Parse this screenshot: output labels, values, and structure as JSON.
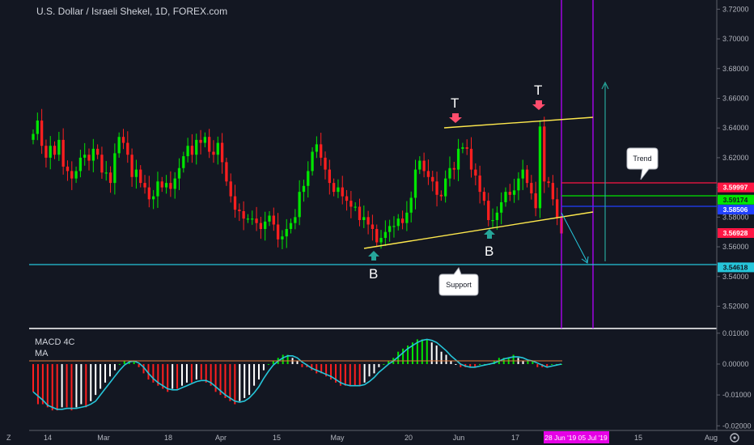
{
  "header": {
    "title": "U.S. Dollar / Israeli Shekel, 1D, FOREX.com"
  },
  "indicator": {
    "name": "MACD 4C",
    "sub": "MA"
  },
  "annotations": {
    "top_left": "T",
    "top_right": "T",
    "bottom_left": "B",
    "bottom_right": "B",
    "trend_label": "Trend",
    "support_label": "Support"
  },
  "price_tags": [
    {
      "value": "3.59997",
      "color": "#ff1744",
      "text_color": "#ffffff"
    },
    {
      "value": "3.59174",
      "color": "#00e600",
      "text_color": "#131722"
    },
    {
      "value": "3.58506",
      "color": "#2040ff",
      "text_color": "#ffffff"
    },
    {
      "value": "3.56928",
      "color": "#ff1744",
      "text_color": "#ffffff"
    },
    {
      "value": "3.54618",
      "color": "#26c6da",
      "text_color": "#131722"
    }
  ],
  "x_axis": {
    "labels": [
      "14",
      "Mar",
      "18",
      "Apr",
      "15",
      "May",
      "20",
      "Jun",
      "17",
      "15",
      "Aug"
    ],
    "range_tag": "28 Jun '19  05 Jul '19",
    "corner": "Z",
    "gear": "settings-gear"
  },
  "colors": {
    "up": "#00e600",
    "down": "#ff1f1f",
    "wedge": "#ffe94d",
    "support": "#26c6da",
    "vline": "#b400ff",
    "macd_line": "#26c6da",
    "hist_white": "#ffffff",
    "hist_red": "#ff1f1f",
    "hist_green": "#00e600"
  },
  "chart_data": [
    {
      "type": "candlestick",
      "title": "U.S. Dollar / Israeli Shekel, 1D, FOREX.com",
      "ylim": [
        3.505,
        3.724
      ],
      "y_ticks": [
        "3.72000",
        "3.70000",
        "3.68000",
        "3.66000",
        "3.64000",
        "3.62000",
        "3.60000",
        "3.58000",
        "3.56000",
        "3.54000",
        "3.52000"
      ],
      "grid": false,
      "close": [
        3.636,
        3.645,
        3.628,
        3.62,
        3.628,
        3.622,
        3.632,
        3.614,
        3.611,
        3.606,
        3.611,
        3.62,
        3.622,
        3.618,
        3.626,
        3.622,
        3.61,
        3.61,
        3.603,
        3.623,
        3.634,
        3.63,
        3.622,
        3.607,
        3.612,
        3.603,
        3.6,
        3.592,
        3.594,
        3.604,
        3.6,
        3.603,
        3.599,
        3.606,
        3.613,
        3.621,
        3.628,
        3.622,
        3.632,
        3.63,
        3.634,
        3.624,
        3.622,
        3.63,
        3.617,
        3.604,
        3.594,
        3.585,
        3.584,
        3.579,
        3.579,
        3.579,
        3.576,
        3.572,
        3.577,
        3.581,
        3.575,
        3.565,
        3.567,
        3.572,
        3.576,
        3.58,
        3.597,
        3.601,
        3.611,
        3.624,
        3.629,
        3.62,
        3.612,
        3.603,
        3.597,
        3.6,
        3.594,
        3.591,
        3.587,
        3.587,
        3.578,
        3.58,
        3.575,
        3.572,
        3.563,
        3.566,
        3.57,
        3.574,
        3.574,
        3.579,
        3.576,
        3.583,
        3.593,
        3.612,
        3.618,
        3.611,
        3.607,
        3.604,
        3.595,
        3.594,
        3.606,
        3.613,
        3.612,
        3.626,
        3.627,
        3.626,
        3.612,
        3.608,
        3.597,
        3.591,
        3.578,
        3.578,
        3.583,
        3.59,
        3.597,
        3.595,
        3.598,
        3.606,
        3.612,
        3.603,
        3.596,
        3.586,
        3.641,
        3.604,
        3.603,
        3.592,
        3.58,
        3.569
      ],
      "trend_target": [
        3.611,
        3.668
      ],
      "support_level": 3.54618
    },
    {
      "type": "bar",
      "title": "MACD 4C",
      "series": [
        {
          "name": "MA",
          "values": [
            -0.009,
            -0.013,
            -0.013,
            -0.014,
            -0.015,
            -0.015,
            -0.014,
            -0.014,
            -0.015,
            -0.014,
            -0.013,
            -0.014,
            -0.012,
            -0.01,
            -0.008,
            -0.006,
            -0.004,
            -0.002,
            0.0,
            0.001,
            0.001,
            0.001,
            -0.001,
            -0.003,
            -0.005,
            -0.006,
            -0.007,
            -0.008,
            -0.009,
            -0.008,
            -0.008,
            -0.007,
            -0.006,
            -0.006,
            -0.005,
            -0.005,
            -0.006,
            -0.007,
            -0.009,
            -0.01,
            -0.011,
            -0.012,
            -0.013,
            -0.012,
            -0.011,
            -0.01,
            -0.007,
            -0.005,
            -0.002,
            0.0,
            0.001,
            0.002,
            0.003,
            0.003,
            0.002,
            0.001,
            -0.001,
            -0.001,
            -0.002,
            -0.003,
            -0.003,
            -0.004,
            -0.005,
            -0.006,
            -0.007,
            -0.007,
            -0.007,
            -0.007,
            -0.007,
            -0.006,
            -0.004,
            -0.003,
            -0.001,
            0.0,
            0.001,
            0.002,
            0.004,
            0.005,
            0.006,
            0.007,
            0.008,
            0.008,
            0.008,
            0.007,
            0.006,
            0.004,
            0.003,
            0.001,
            0.0,
            -0.001,
            -0.001,
            -0.001,
            -0.001,
            -0.0,
            0.0,
            0.0,
            0.001,
            0.002,
            0.002,
            0.002,
            0.003,
            0.002,
            0.001,
            0.001,
            0.001,
            -0.001,
            -0.001,
            -0.001,
            0.0,
            0.0,
            0.0
          ]
        }
      ],
      "ylim": [
        -0.0215,
        0.011
      ],
      "y_ticks": [
        "0.01000",
        "0.00000",
        "-0.01000",
        "-0.02000"
      ]
    }
  ]
}
